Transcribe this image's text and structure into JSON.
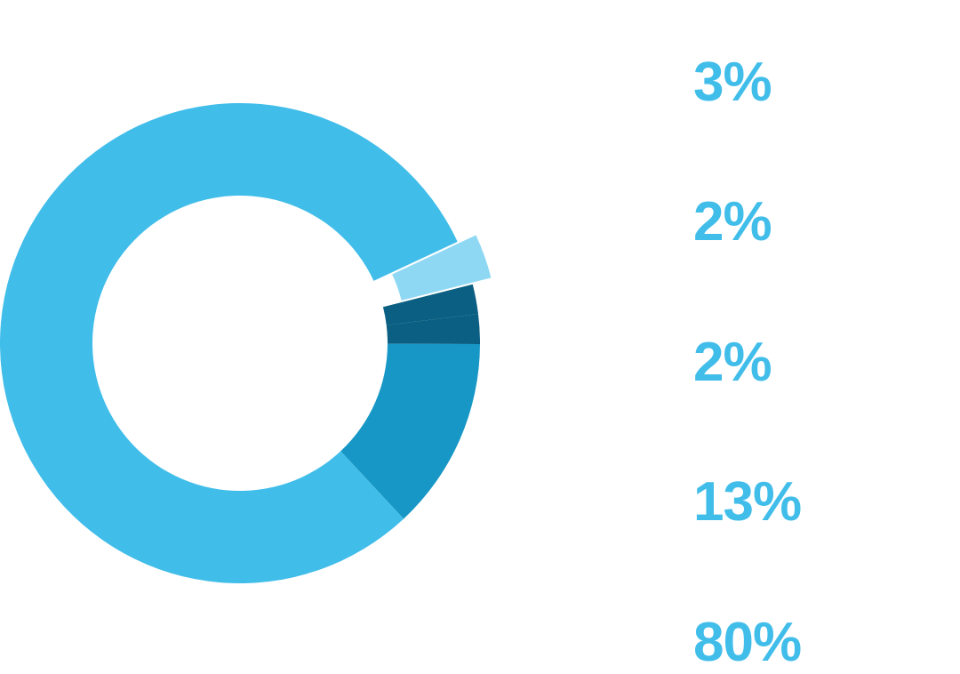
{
  "chart_data": {
    "type": "pie",
    "donut": true,
    "legend_position": "right",
    "slices": [
      {
        "label": "3%",
        "value": 3,
        "color": "#8ed8f4",
        "exploded": true
      },
      {
        "label": "2%",
        "value": 2,
        "color": "#0a5f82",
        "exploded": false
      },
      {
        "label": "2%",
        "value": 2,
        "color": "#0a5f82",
        "exploded": false
      },
      {
        "label": "13%",
        "value": 13,
        "color": "#1797c5",
        "exploded": false
      },
      {
        "label": "80%",
        "value": 80,
        "color": "#41bdea",
        "exploded": false
      }
    ],
    "label_color": "#41bdea"
  }
}
